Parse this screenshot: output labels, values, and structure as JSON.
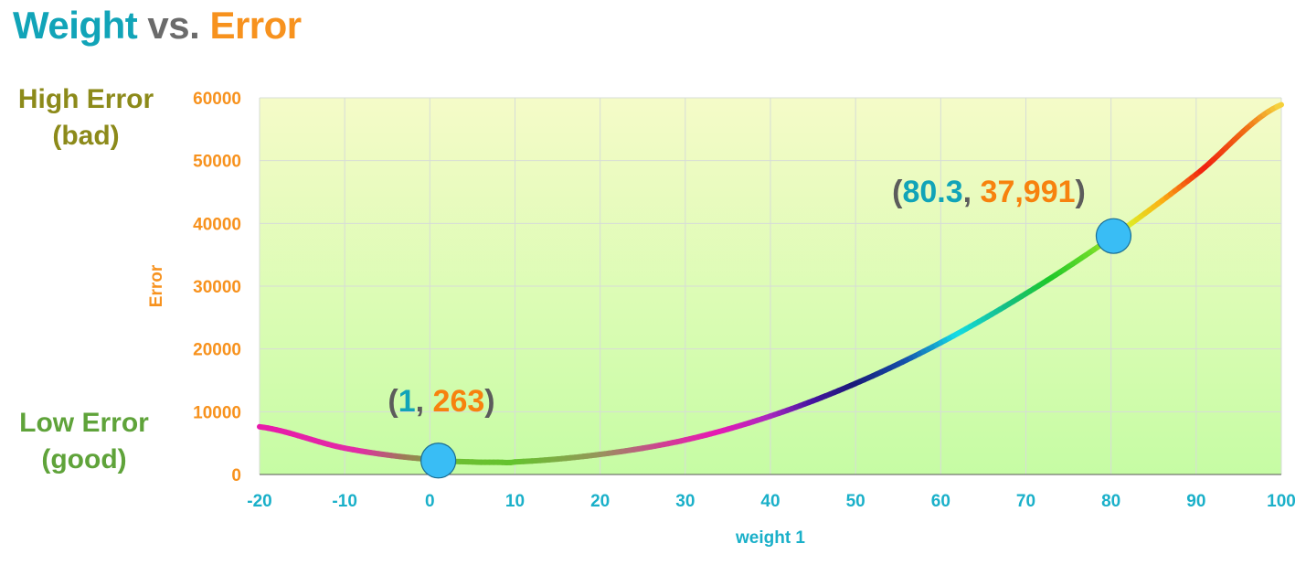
{
  "title": {
    "word1": "Weight",
    "word2": "vs.",
    "word3": "Error",
    "colors": {
      "word1": "#11a4b8",
      "word2": "#6b6b6b",
      "word3": "#f7921e"
    }
  },
  "side_labels": {
    "high_line1": "High Error",
    "high_line2": "(bad)",
    "low_line1": "Low Error",
    "low_line2": "(good)",
    "colors": {
      "high": "#8c8a1a",
      "low": "#5fa33a"
    }
  },
  "chart_data": {
    "type": "line",
    "xlabel": "weight 1",
    "ylabel": "Error",
    "xlim": [
      -20,
      100
    ],
    "ylim": [
      0,
      60000
    ],
    "x_ticks": [
      "-20",
      "-10",
      "0",
      "10",
      "20",
      "30",
      "40",
      "50",
      "60",
      "70",
      "80",
      "90",
      "100"
    ],
    "y_ticks": [
      "0",
      "10000",
      "20000",
      "30000",
      "40000",
      "50000",
      "60000"
    ],
    "grid": true,
    "series": [
      {
        "x": [
          -20,
          -10,
          0,
          5,
          8,
          10,
          20,
          30,
          40,
          50,
          60,
          70,
          80,
          90,
          100
        ],
        "y": [
          7600,
          4200,
          2400,
          2000,
          1950,
          2000,
          3200,
          5500,
          9300,
          14500,
          21000,
          28800,
          37700,
          47800,
          58900
        ]
      }
    ],
    "points": [
      {
        "x": 1,
        "y": 263,
        "label_x": "1",
        "label_y": "263"
      },
      {
        "x": 80.3,
        "y": 37991,
        "label_x": "80.3",
        "label_y": "37,991"
      }
    ],
    "annotation_parts": {
      "open": "(",
      "sep": ", ",
      "close": ")"
    },
    "colors": {
      "x_axis_text": "#1ab0c9",
      "y_axis_text": "#f7921e",
      "annot_x": "#11a4b8",
      "annot_y": "#f7820e",
      "annot_paren": "#5c5c5c",
      "marker_fill": "#39bdf5",
      "background_top": "#f5fbc8",
      "background_bottom": "#c6fca4",
      "gridline": "#d7dcd7"
    }
  }
}
